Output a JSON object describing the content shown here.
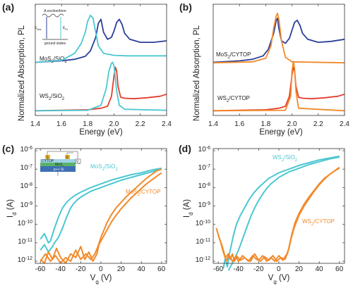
{
  "colors": {
    "blue": "#2a3f9a",
    "cyan": "#4cc7d2",
    "red": "#e53d2b",
    "orange": "#f28a2b",
    "frame": "#333333"
  },
  "chart_data": [
    {
      "panel": "(a)",
      "type": "line",
      "xlabel": "Energy (eV)",
      "ylabel": "Normalized Absorption, PL",
      "xlim": [
        1.4,
        2.4
      ],
      "xticks": [
        "1.4",
        "1.6",
        "1.8",
        "2.0",
        "2.2",
        "2.4"
      ],
      "annotations": [
        "MoS2/SiO2",
        "WS2/SiO2"
      ],
      "inset": {
        "title": "A exciton/trion",
        "abs_label": "E_Abs",
        "pl_label": "E_PL",
        "bottom_label": "ground states"
      },
      "series": [
        {
          "group": "MoS2",
          "kind": "absorption",
          "color": "#2a3f9a",
          "x": [
            1.4,
            1.6,
            1.7,
            1.78,
            1.82,
            1.86,
            1.88,
            1.9,
            1.92,
            1.95,
            1.98,
            2.0,
            2.02,
            2.04,
            2.06,
            2.08,
            2.12,
            2.2,
            2.3,
            2.4
          ],
          "y": [
            0.02,
            0.05,
            0.08,
            0.14,
            0.25,
            0.52,
            0.8,
            0.88,
            0.62,
            0.48,
            0.52,
            0.65,
            0.82,
            0.88,
            0.78,
            0.6,
            0.48,
            0.42,
            0.42,
            0.45
          ]
        },
        {
          "group": "MoS2",
          "kind": "PL",
          "color": "#4cc7d2",
          "x": [
            1.4,
            1.6,
            1.7,
            1.75,
            1.78,
            1.8,
            1.82,
            1.84,
            1.86,
            1.88,
            1.92,
            2.0,
            2.1,
            2.2,
            2.4
          ],
          "y": [
            0.02,
            0.06,
            0.2,
            0.4,
            0.62,
            0.85,
            0.96,
            0.9,
            0.62,
            0.35,
            0.2,
            0.16,
            0.15,
            0.15,
            0.15
          ]
        },
        {
          "group": "WS2",
          "kind": "absorption",
          "color": "#e53d2b",
          "x": [
            1.4,
            1.8,
            1.9,
            1.95,
            1.98,
            2.0,
            2.01,
            2.02,
            2.03,
            2.05,
            2.08,
            2.15,
            2.25,
            2.35,
            2.4
          ],
          "y": [
            0.01,
            0.03,
            0.06,
            0.1,
            0.3,
            0.72,
            0.88,
            0.8,
            0.5,
            0.28,
            0.26,
            0.25,
            0.27,
            0.3,
            0.34
          ]
        },
        {
          "group": "WS2",
          "kind": "PL",
          "color": "#4cc7d2",
          "x": [
            1.4,
            1.8,
            1.9,
            1.94,
            1.96,
            1.98,
            1.99,
            2.0,
            2.02,
            2.04,
            2.08,
            2.4
          ],
          "y": [
            0.01,
            0.02,
            0.12,
            0.45,
            0.8,
            0.96,
            0.98,
            0.9,
            0.4,
            0.12,
            0.04,
            0.02
          ]
        }
      ]
    },
    {
      "panel": "(b)",
      "type": "line",
      "xlabel": "Energy (eV)",
      "ylabel": "Normalized Absorption, PL",
      "xlim": [
        1.4,
        2.4
      ],
      "xticks": [
        "1.4",
        "1.6",
        "1.8",
        "2.0",
        "2.2",
        "2.4"
      ],
      "annotations": [
        "MoS2/CYTOP",
        "WS2/CYTOP"
      ],
      "series": [
        {
          "group": "MoS2",
          "kind": "absorption",
          "color": "#2a3f9a",
          "x": [
            1.4,
            1.6,
            1.7,
            1.78,
            1.82,
            1.86,
            1.88,
            1.89,
            1.9,
            1.92,
            1.95,
            1.98,
            2.0,
            2.02,
            2.04,
            2.06,
            2.08,
            2.12,
            2.2,
            2.3,
            2.4
          ],
          "y": [
            0.02,
            0.05,
            0.08,
            0.15,
            0.28,
            0.6,
            0.86,
            0.9,
            0.7,
            0.45,
            0.4,
            0.5,
            0.66,
            0.82,
            0.86,
            0.76,
            0.6,
            0.48,
            0.42,
            0.44,
            0.48
          ]
        },
        {
          "group": "MoS2",
          "kind": "PL",
          "color": "#f28a2b",
          "x": [
            1.4,
            1.7,
            1.8,
            1.84,
            1.86,
            1.88,
            1.89,
            1.9,
            1.92,
            1.95,
            2.0,
            2.4
          ],
          "y": [
            0.01,
            0.03,
            0.1,
            0.35,
            0.7,
            0.95,
            1.0,
            0.88,
            0.45,
            0.12,
            0.03,
            0.01
          ]
        },
        {
          "group": "WS2",
          "kind": "absorption",
          "color": "#e53d2b",
          "x": [
            1.4,
            1.8,
            1.9,
            1.95,
            1.98,
            2.0,
            2.01,
            2.02,
            2.03,
            2.05,
            2.08,
            2.15,
            2.25,
            2.35,
            2.4
          ],
          "y": [
            0.01,
            0.03,
            0.06,
            0.1,
            0.3,
            0.72,
            0.88,
            0.8,
            0.5,
            0.28,
            0.26,
            0.25,
            0.27,
            0.3,
            0.34
          ]
        },
        {
          "group": "WS2",
          "kind": "PL",
          "color": "#f28a2b",
          "x": [
            1.4,
            1.95,
            1.99,
            2.0,
            2.01,
            2.02,
            2.03,
            2.05,
            2.4
          ],
          "y": [
            0.01,
            0.02,
            0.3,
            0.8,
            1.0,
            0.85,
            0.4,
            0.06,
            0.01
          ]
        }
      ]
    },
    {
      "panel": "(c)",
      "type": "line",
      "yscale": "log",
      "xlabel": "V_g (V)",
      "ylabel": "I_d (A)",
      "xlim": [
        -65,
        65
      ],
      "ylim_exp": [
        -12,
        -6
      ],
      "xticks": [
        "-60",
        "-40",
        "-20",
        "0",
        "20",
        "40",
        "60"
      ],
      "annotations": [
        "MoS2/SiO2",
        "MoS2/CYTOP"
      ],
      "inset": {
        "top_label": "CYTOP",
        "source_label": "S",
        "drain_label": "D",
        "layer_label": "MoS2",
        "substrate_label": "p++ Si",
        "vd_label": "V_d",
        "vg_label": "V_g"
      },
      "series": [
        {
          "name": "MoS2/SiO2 fwd",
          "color": "#4cc7d2",
          "x": [
            -60,
            -56,
            -52,
            -50,
            -46,
            -42,
            -38,
            -34,
            -30,
            -25,
            -20,
            -10,
            0,
            10,
            20,
            30,
            40,
            50,
            60
          ],
          "logy": [
            -10.8,
            -10.5,
            -11.0,
            -10.9,
            -10.2,
            -9.6,
            -9.1,
            -8.8,
            -8.6,
            -8.4,
            -8.25,
            -8.0,
            -7.8,
            -7.6,
            -7.45,
            -7.3,
            -7.2,
            -7.05,
            -6.95
          ]
        },
        {
          "name": "MoS2/SiO2 rev",
          "color": "#4cc7d2",
          "x": [
            -60,
            -56,
            -52,
            -48,
            -46,
            -42,
            -38,
            -34,
            -30,
            -26,
            -22,
            -18,
            -10,
            0,
            10,
            20,
            30,
            40,
            50,
            60
          ],
          "logy": [
            -11.4,
            -11.1,
            -11.5,
            -11.2,
            -11.0,
            -10.7,
            -10.2,
            -9.6,
            -9.1,
            -8.8,
            -8.6,
            -8.45,
            -8.2,
            -8.0,
            -7.8,
            -7.6,
            -7.45,
            -7.3,
            -7.15,
            -7.0
          ]
        },
        {
          "name": "MoS2/CYTOP fwd",
          "color": "#f28a2b",
          "x": [
            -60,
            -55,
            -50,
            -45,
            -40,
            -35,
            -30,
            -25,
            -20,
            -15,
            -10,
            -6,
            -3,
            0,
            3,
            6,
            10,
            15,
            20,
            25,
            30,
            35,
            40,
            45,
            50,
            55,
            60
          ],
          "logy": [
            -12.0,
            -11.6,
            -12.0,
            -11.7,
            -12.1,
            -11.8,
            -12.0,
            -11.4,
            -11.9,
            -11.6,
            -11.9,
            -11.6,
            -11.2,
            -10.7,
            -10.3,
            -9.9,
            -9.5,
            -9.1,
            -8.8,
            -8.5,
            -8.25,
            -8.0,
            -7.75,
            -7.5,
            -7.3,
            -7.1,
            -7.0
          ]
        },
        {
          "name": "MoS2/CYTOP rev",
          "color": "#f28a2b",
          "x": [
            -60,
            -56,
            -52,
            -48,
            -44,
            -40,
            -35,
            -30,
            -25,
            -20,
            -16,
            -12,
            -8,
            -4,
            -2,
            0,
            5,
            10,
            15,
            20,
            25,
            30,
            35,
            40,
            45,
            50,
            55,
            60
          ],
          "logy": [
            -11.9,
            -12.1,
            -11.5,
            -11.9,
            -11.3,
            -11.8,
            -12.1,
            -11.6,
            -11.8,
            -11.2,
            -11.9,
            -11.5,
            -12.0,
            -11.6,
            -11.1,
            -10.9,
            -10.4,
            -9.9,
            -9.5,
            -9.15,
            -8.85,
            -8.55,
            -8.3,
            -8.05,
            -7.8,
            -7.6,
            -7.4,
            -7.2
          ]
        }
      ]
    },
    {
      "panel": "(d)",
      "type": "line",
      "yscale": "log",
      "xlabel": "V_g (V)",
      "ylabel": "I_d (A)",
      "xlim": [
        -65,
        65
      ],
      "ylim_exp": [
        -12,
        -6
      ],
      "xticks": [
        "-60",
        "-40",
        "-20",
        "0",
        "20",
        "40",
        "60"
      ],
      "annotations": [
        "WS2/SiO2",
        "WS2/CYTOP"
      ],
      "series": [
        {
          "name": "WS2/SiO2 fwd",
          "color": "#4cc7d2",
          "x": [
            -55,
            -53,
            -51,
            -49,
            -47,
            -45,
            -42,
            -38,
            -34,
            -30,
            -25,
            -20,
            -15,
            -10,
            0,
            10,
            20,
            30,
            40,
            50,
            60
          ],
          "logy": [
            -12.4,
            -11.8,
            -12.3,
            -11.6,
            -11.1,
            -10.6,
            -10.0,
            -9.5,
            -9.1,
            -8.7,
            -8.3,
            -8.0,
            -7.75,
            -7.5,
            -7.2,
            -7.0,
            -6.8,
            -6.65,
            -6.5,
            -6.4,
            -6.3
          ]
        },
        {
          "name": "WS2/SiO2 rev",
          "color": "#4cc7d2",
          "x": [
            -50,
            -45,
            -40,
            -36,
            -32,
            -28,
            -24,
            -20,
            -16,
            -12,
            -8,
            0,
            10,
            20,
            30,
            40,
            50,
            60
          ],
          "logy": [
            -12.5,
            -12.0,
            -11.4,
            -10.8,
            -10.2,
            -9.6,
            -9.1,
            -8.7,
            -8.35,
            -8.05,
            -7.8,
            -7.45,
            -7.15,
            -6.95,
            -6.75,
            -6.6,
            -6.45,
            -6.35
          ]
        },
        {
          "name": "WS2/CYTOP fwd",
          "color": "#f28a2b",
          "x": [
            -62,
            -58,
            -55,
            -52,
            -50,
            -48,
            -46,
            -44,
            -42,
            -40,
            -36,
            -32,
            -28,
            -24,
            -20,
            -16,
            -12,
            -8,
            -4,
            0,
            4,
            8,
            10,
            12,
            15,
            20,
            25,
            30,
            35,
            40,
            45,
            50,
            55,
            60
          ],
          "logy": [
            -10.2,
            -10.9,
            -11.5,
            -12.0,
            -11.7,
            -11.9,
            -11.6,
            -12.0,
            -11.8,
            -12.0,
            -11.7,
            -11.9,
            -12.0,
            -11.6,
            -11.95,
            -11.7,
            -12.0,
            -11.8,
            -12.0,
            -11.7,
            -11.95,
            -11.6,
            -11.3,
            -10.8,
            -10.2,
            -9.5,
            -9.0,
            -8.6,
            -8.2,
            -7.85,
            -7.55,
            -7.3,
            -7.1,
            -6.9
          ]
        },
        {
          "name": "WS2/CYTOP rev",
          "color": "#f28a2b",
          "x": [
            -60,
            -56,
            -53,
            -50,
            -46,
            -42,
            -38,
            -34,
            -30,
            -26,
            -22,
            -18,
            -14,
            -10,
            -6,
            -2,
            2,
            6,
            9,
            11,
            13,
            16,
            20,
            25,
            30,
            35,
            40,
            45,
            50,
            55,
            60
          ],
          "logy": [
            -10.6,
            -11.2,
            -11.8,
            -11.6,
            -12.0,
            -11.7,
            -11.95,
            -11.8,
            -12.0,
            -11.7,
            -11.9,
            -12.0,
            -11.75,
            -11.95,
            -11.7,
            -12.0,
            -11.8,
            -11.9,
            -11.5,
            -11.0,
            -10.5,
            -9.9,
            -9.4,
            -8.9,
            -8.5,
            -8.15,
            -7.8,
            -7.5,
            -7.3,
            -7.1,
            -6.95
          ]
        }
      ]
    }
  ]
}
